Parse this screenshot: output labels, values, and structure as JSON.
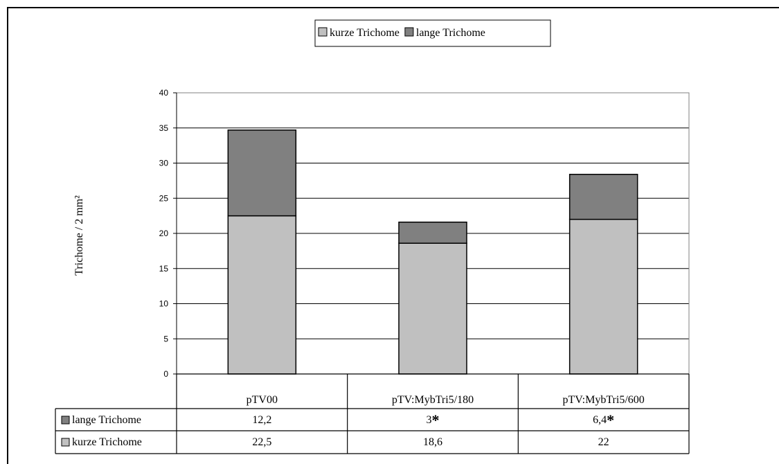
{
  "chart_data": {
    "type": "bar",
    "stacked": true,
    "categories": [
      "pTV00",
      "pTV:MybTri5/180",
      "pTV:MybTri5/600"
    ],
    "series": [
      {
        "name": "kurze Trichome",
        "values": [
          22.5,
          18.6,
          22
        ],
        "labels": [
          "22,5",
          "18,6",
          "22"
        ],
        "color": "#c0c0c0"
      },
      {
        "name": "lange Trichome",
        "values": [
          12.2,
          3,
          6.4
        ],
        "labels": [
          "12,2",
          "3",
          "6,4"
        ],
        "color": "#808080"
      }
    ],
    "significance_marks": [
      {
        "series": "lange Trichome",
        "category": "pTV:MybTri5/180",
        "mark": "*"
      },
      {
        "series": "lange Trichome",
        "category": "pTV:MybTri5/600",
        "mark": "*"
      }
    ],
    "ylabel": "Trichome / 2 mm²",
    "xlabel": "",
    "ylim": [
      0,
      40
    ],
    "yticks": [
      0,
      5,
      10,
      15,
      20,
      25,
      30,
      35,
      40
    ],
    "grid": true,
    "legend_position": "top-center",
    "legend_order": [
      "kurze Trichome",
      "lange Trichome"
    ],
    "data_table": true,
    "table_rows_order": [
      "lange Trichome",
      "kurze Trichome"
    ]
  }
}
